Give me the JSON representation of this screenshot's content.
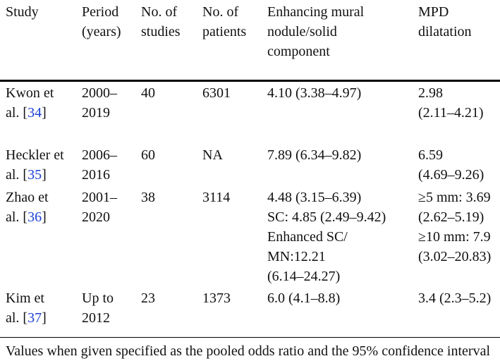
{
  "table": {
    "header": [
      [
        "Study"
      ],
      [
        "Period",
        "(years)"
      ],
      [
        "No. of",
        "studies"
      ],
      [
        "No. of",
        "patients"
      ],
      [
        "Enhancing mural",
        "nodule/solid",
        "component"
      ],
      [
        "MPD",
        "dilatation"
      ]
    ],
    "rows": [
      [
        {
          "lines": [
            "Kwon et",
            "al. ["
          ],
          "ref": "34",
          "tail": "]"
        },
        [
          "2000–",
          "2019"
        ],
        [
          "40"
        ],
        [
          "6301"
        ],
        [
          "4.10 (3.38–4.97)"
        ],
        [
          "2.98",
          "(2.11–4.21)"
        ]
      ],
      [
        {
          "lines": [
            "Heckler et",
            "al. ["
          ],
          "ref": "35",
          "tail": "]"
        },
        [
          "2006–",
          "2016"
        ],
        [
          "60"
        ],
        [
          "NA"
        ],
        [
          "7.89 (6.34–9.82)"
        ],
        [
          "6.59",
          "(4.69–9.26)"
        ]
      ],
      [
        {
          "lines": [
            "Zhao et",
            "al. ["
          ],
          "ref": "36",
          "tail": "]"
        },
        [
          "2001–",
          "2020"
        ],
        [
          "38"
        ],
        [
          "3114"
        ],
        [
          "4.48 (3.15–6.39)",
          "SC: 4.85 (2.49–9.42)",
          "Enhanced SC/",
          "MN:12.21",
          "(6.14–24.27)"
        ],
        [
          "≥5 mm: 3.69",
          "(2.62–5.19)",
          "≥10 mm: 7.9",
          "(3.02–20.83)"
        ]
      ],
      [
        {
          "lines": [
            "Kim et",
            "al. ["
          ],
          "ref": "37",
          "tail": "]"
        },
        [
          "Up to",
          "2012"
        ],
        [
          "23"
        ],
        [
          "1373"
        ],
        [
          "6.0 (4.1–8.8)"
        ],
        [
          "3.4 (2.3–5.2)"
        ]
      ]
    ],
    "footnote": "Values when given specified as the pooled odds ratio and the 95% confidence interval"
  }
}
